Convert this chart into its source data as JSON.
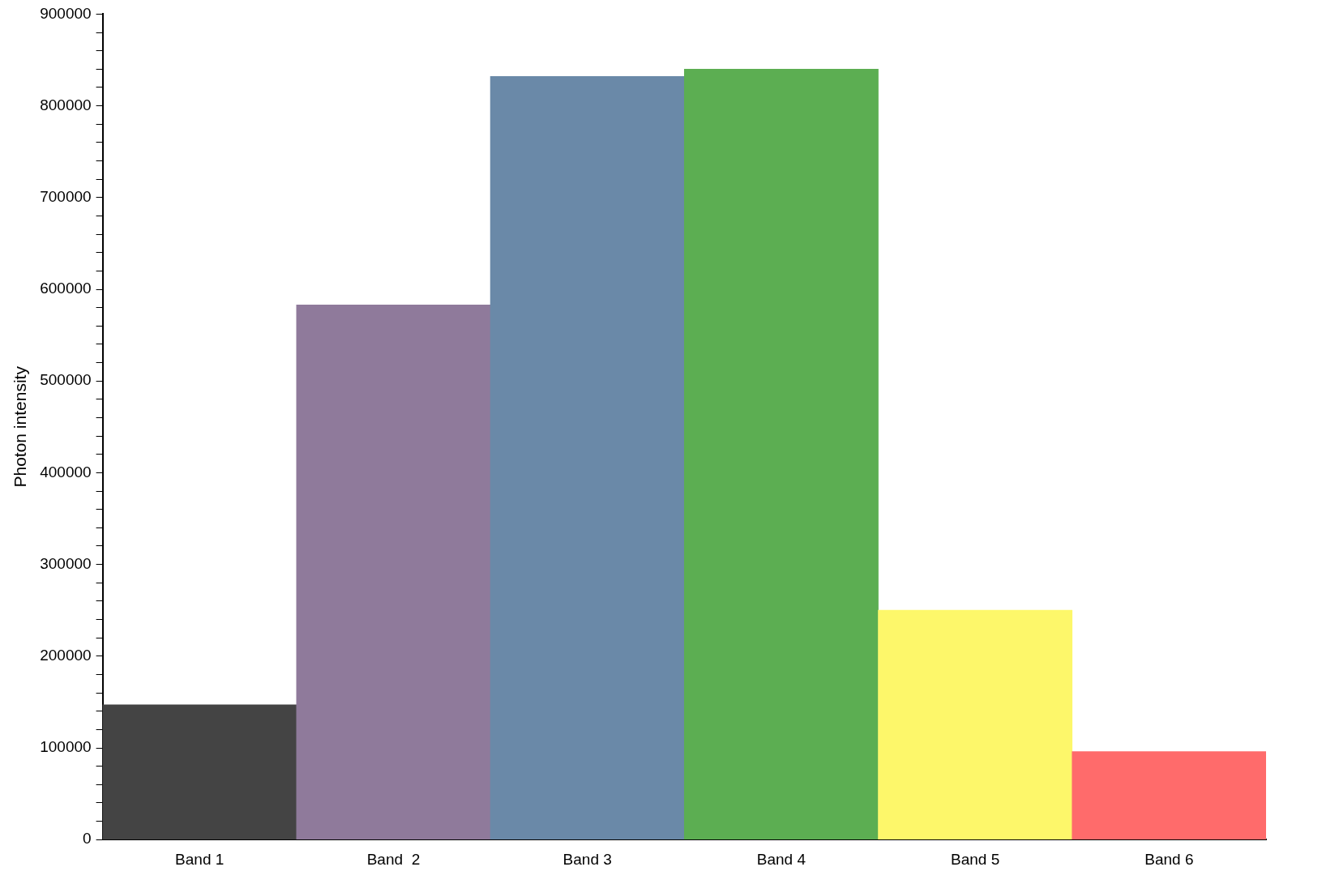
{
  "chart_data": {
    "type": "bar",
    "ylabel": "Photon intensity",
    "categories": [
      "Band 1",
      "Band  2",
      "Band 3",
      "Band 4",
      "Band 5",
      "Band 6"
    ],
    "values": [
      147000,
      583000,
      832000,
      840000,
      250000,
      96000
    ],
    "colors": [
      "#444444",
      "#8f7a9b",
      "#6a89a8",
      "#5cae52",
      "#fdf76a",
      "#ff6b6b"
    ],
    "ylim": [
      0,
      900000
    ],
    "yticks": [
      0,
      {
        "value": 20000,
        "label": null
      },
      {
        "value": 40000,
        "label": null
      },
      {
        "value": 60000,
        "label": null
      },
      {
        "value": 80000,
        "label": null
      },
      100000,
      {
        "value": 120000,
        "label": null
      },
      {
        "value": 140000,
        "label": null
      },
      {
        "value": 160000,
        "label": null
      },
      {
        "value": 180000,
        "label": null
      },
      200000,
      {
        "value": 220000,
        "label": null
      },
      {
        "value": 240000,
        "label": null
      },
      {
        "value": 260000,
        "label": null
      },
      {
        "value": 280000,
        "label": null
      },
      300000,
      {
        "value": 320000,
        "label": null
      },
      {
        "value": 340000,
        "label": null
      },
      {
        "value": 360000,
        "label": null
      },
      {
        "value": 380000,
        "label": null
      },
      400000,
      {
        "value": 420000,
        "label": null
      },
      {
        "value": 440000,
        "label": null
      },
      {
        "value": 460000,
        "label": null
      },
      {
        "value": 480000,
        "label": null
      },
      500000,
      {
        "value": 520000,
        "label": null
      },
      {
        "value": 540000,
        "label": null
      },
      {
        "value": 560000,
        "label": null
      },
      {
        "value": 580000,
        "label": null
      },
      600000,
      {
        "value": 620000,
        "label": null
      },
      {
        "value": 640000,
        "label": null
      },
      {
        "value": 660000,
        "label": null
      },
      {
        "value": 680000,
        "label": null
      },
      700000,
      {
        "value": 720000,
        "label": null
      },
      {
        "value": 740000,
        "label": null
      },
      {
        "value": 760000,
        "label": null
      },
      {
        "value": 780000,
        "label": null
      },
      800000,
      {
        "value": 820000,
        "label": null
      },
      {
        "value": 840000,
        "label": null
      },
      {
        "value": 860000,
        "label": null
      },
      {
        "value": 880000,
        "label": null
      },
      900000
    ],
    "grid": false,
    "legend": false
  }
}
